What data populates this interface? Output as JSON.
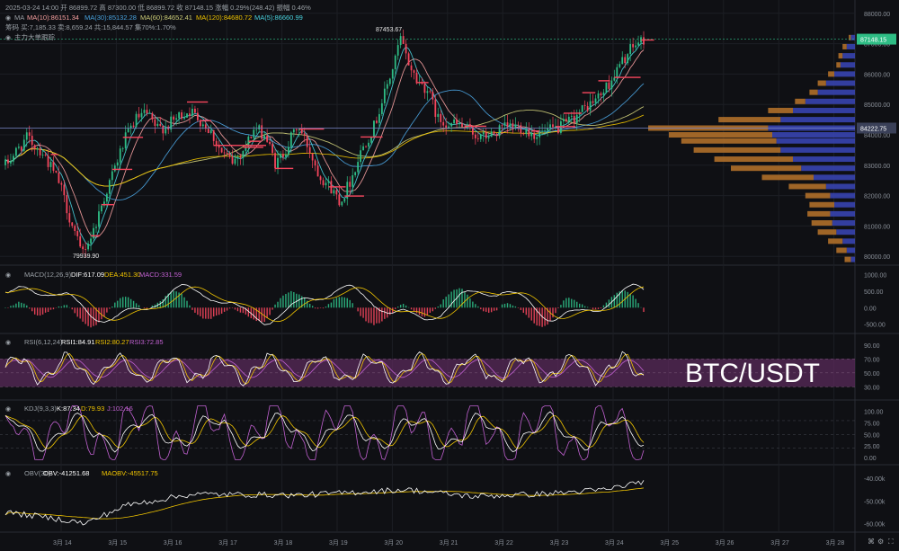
{
  "watermark": "BTC/USDT",
  "colors": {
    "background": "#0f1014",
    "grid": "#1c1e24",
    "up": "#2ebd85",
    "down": "#f6465d",
    "ma10": "#f7a1a1",
    "ma30": "#4aa3df",
    "ma60": "#cfcf7a",
    "ma120": "#f0c400",
    "ma5": "#ffffff",
    "macd_dif": "#ffffff",
    "macd_dea": "#f0c400",
    "rsi1": "#ffffff",
    "rsi2": "#f0c400",
    "rsi3": "#c060d0",
    "rsi_band": "#5a2a5a",
    "kdj_k": "#ffffff",
    "kdj_d": "#f0c400",
    "kdj_j": "#c060d0",
    "obv": "#ffffff",
    "maobv": "#f0c400",
    "vp_up": "#3a46b8",
    "vp_down": "#b8742a",
    "current_price_tag": "#2ebd85",
    "poc_tag": "#3a4058"
  },
  "header": {
    "ohlc_line": "2025-03-24 14:00  开 86899.72  高 87300.00  低 86899.72  收 87148.15  涨幅 0.29%(248.42)  振幅 0.46%",
    "ma_label": "MA",
    "ma_values": [
      {
        "label": "MA(10):86151.34",
        "color_key": "ma10"
      },
      {
        "label": "MA(30):85132.28",
        "color_key": "ma30"
      },
      {
        "label": "MA(60):84652.41",
        "color_key": "ma60"
      },
      {
        "label": "MA(120):84680.72",
        "color_key": "ma120"
      },
      {
        "label": "MA(5):86660.99",
        "color_key": "ma5"
      }
    ],
    "chip_line": "筹码 买:7,185.33  卖:8,659.24  共:15,844.57  集70%:1.70%",
    "chip_buy": "7,185.33",
    "chip_sell": "8,659.24",
    "chip_total": "15,844.57",
    "chip_70": "1.70%",
    "main_force_label": "主力大单跟踪"
  },
  "chart_data": [
    {
      "type": "candlestick",
      "name": "BTC/USDT price",
      "x_ticks": [
        "3月 14",
        "3月 15",
        "3月 16",
        "3月 17",
        "3月 18",
        "3月 19",
        "3月 20",
        "3月 21",
        "3月 22",
        "3月 23",
        "3月 24",
        "3月 25",
        "3月 26",
        "3月 27",
        "3月 28"
      ],
      "y_ticks": [
        80000,
        81000,
        82000,
        83000,
        84000,
        85000,
        86000,
        87000,
        88000
      ],
      "ylim": [
        79800,
        88200
      ],
      "annotations": {
        "high_label": "87453.67",
        "low_label": "79939.90"
      },
      "current_price": 87148.15,
      "current_price_label": "87148.15",
      "poc_price": 84222.75,
      "poc_label": "84222.75",
      "price_path": [
        [
          0,
          83000
        ],
        [
          4,
          83900
        ],
        [
          7,
          83400
        ],
        [
          10,
          82400
        ],
        [
          12,
          81200
        ],
        [
          14,
          80100
        ],
        [
          16,
          80700
        ],
        [
          18,
          81800
        ],
        [
          20,
          82800
        ],
        [
          22,
          83800
        ],
        [
          24,
          84500
        ],
        [
          26,
          84700
        ],
        [
          28,
          84200
        ],
        [
          30,
          84300
        ],
        [
          32,
          84600
        ],
        [
          34,
          84800
        ],
        [
          36,
          84500
        ],
        [
          38,
          84100
        ],
        [
          40,
          83400
        ],
        [
          42,
          83100
        ],
        [
          44,
          83500
        ],
        [
          46,
          84200
        ],
        [
          48,
          84000
        ],
        [
          50,
          83000
        ],
        [
          52,
          83600
        ],
        [
          54,
          84300
        ],
        [
          56,
          83600
        ],
        [
          58,
          82700
        ],
        [
          60,
          82300
        ],
        [
          62,
          81800
        ],
        [
          64,
          82600
        ],
        [
          66,
          83600
        ],
        [
          68,
          84200
        ],
        [
          70,
          85300
        ],
        [
          72,
          86400
        ],
        [
          73,
          87200
        ],
        [
          74,
          86600
        ],
        [
          76,
          85800
        ],
        [
          78,
          85500
        ],
        [
          80,
          84500
        ],
        [
          82,
          84400
        ],
        [
          84,
          84300
        ],
        [
          86,
          84100
        ],
        [
          88,
          83900
        ],
        [
          90,
          84000
        ],
        [
          92,
          84200
        ],
        [
          94,
          84300
        ],
        [
          96,
          84200
        ],
        [
          98,
          84000
        ],
        [
          100,
          84100
        ],
        [
          102,
          84200
        ],
        [
          104,
          84400
        ],
        [
          106,
          84700
        ],
        [
          108,
          85000
        ],
        [
          110,
          85300
        ],
        [
          112,
          85800
        ],
        [
          114,
          86400
        ],
        [
          116,
          86900
        ],
        [
          118,
          87148
        ]
      ],
      "volume_profile": [
        {
          "price": 79900,
          "up": 0.02,
          "down": 0.03
        },
        {
          "price": 80200,
          "up": 0.04,
          "down": 0.05
        },
        {
          "price": 80500,
          "up": 0.06,
          "down": 0.07
        },
        {
          "price": 80800,
          "up": 0.09,
          "down": 0.09
        },
        {
          "price": 81100,
          "up": 0.11,
          "down": 0.1
        },
        {
          "price": 81400,
          "up": 0.12,
          "down": 0.11
        },
        {
          "price": 81700,
          "up": 0.1,
          "down": 0.12
        },
        {
          "price": 82000,
          "up": 0.12,
          "down": 0.12
        },
        {
          "price": 82300,
          "up": 0.14,
          "down": 0.18
        },
        {
          "price": 82600,
          "up": 0.2,
          "down": 0.25
        },
        {
          "price": 82900,
          "up": 0.26,
          "down": 0.34
        },
        {
          "price": 83200,
          "up": 0.3,
          "down": 0.38
        },
        {
          "price": 83500,
          "up": 0.36,
          "down": 0.42
        },
        {
          "price": 83800,
          "up": 0.38,
          "down": 0.46
        },
        {
          "price": 84000,
          "up": 0.4,
          "down": 0.5
        },
        {
          "price": 84222,
          "up": 0.42,
          "down": 0.58
        },
        {
          "price": 84500,
          "up": 0.36,
          "down": 0.3
        },
        {
          "price": 84800,
          "up": 0.3,
          "down": 0.12
        },
        {
          "price": 85100,
          "up": 0.24,
          "down": 0.05
        },
        {
          "price": 85400,
          "up": 0.18,
          "down": 0.04
        },
        {
          "price": 85700,
          "up": 0.14,
          "down": 0.04
        },
        {
          "price": 86000,
          "up": 0.1,
          "down": 0.03
        },
        {
          "price": 86300,
          "up": 0.07,
          "down": 0.02
        },
        {
          "price": 86600,
          "up": 0.06,
          "down": 0.02
        },
        {
          "price": 86900,
          "up": 0.04,
          "down": 0.02
        },
        {
          "price": 87200,
          "up": 0.02,
          "down": 0.01
        }
      ]
    },
    {
      "type": "histogram+line",
      "name": "MACD(12,26,9)",
      "legend": [
        {
          "label": "MACD(12,26,9)",
          "color_key": "macd_dif"
        },
        {
          "label": "DIF:617.09",
          "color_key": "macd_dif"
        },
        {
          "label": "DEA:451.30",
          "color_key": "macd_dea"
        },
        {
          "label": "MACD:331.59",
          "color_key": "up"
        }
      ],
      "y_ticks": [
        -500,
        0,
        500,
        1000
      ],
      "ylim": [
        -700,
        1150
      ]
    },
    {
      "type": "line",
      "name": "RSI(6,12,24)",
      "legend": [
        {
          "label": "RSI(6,12,24)",
          "color_key": "rsi1"
        },
        {
          "label": "RSI1:84.91",
          "color_key": "rsi1"
        },
        {
          "label": "RSI2:80.27",
          "color_key": "rsi2"
        },
        {
          "label": "RSI3:72.85",
          "color_key": "rsi3"
        }
      ],
      "y_ticks": [
        30,
        50,
        70,
        90
      ],
      "band": [
        30,
        70
      ],
      "ylim": [
        15,
        100
      ]
    },
    {
      "type": "line",
      "name": "KDJ(9,3,3)",
      "legend": [
        {
          "label": "KDJ(9,3,3)",
          "color_key": "kdj_k"
        },
        {
          "label": "K:87.34",
          "color_key": "kdj_k"
        },
        {
          "label": "D:79.93",
          "color_key": "kdj_d"
        },
        {
          "label": "J:102.16",
          "color_key": "kdj_j"
        }
      ],
      "y_ticks": [
        0,
        25,
        50,
        75,
        100
      ],
      "ylim": [
        -10,
        115
      ]
    },
    {
      "type": "line",
      "name": "OBV(30)",
      "legend": [
        {
          "label": "OBV(30)",
          "color_key": "obv"
        },
        {
          "label": "OBV:-41251.68",
          "color_key": "obv"
        },
        {
          "label": "MAOBV:-45517.75",
          "color_key": "maobv"
        }
      ],
      "y_ticks": [
        -40000,
        -50000,
        -60000
      ],
      "y_tick_labels": [
        "-40.00k",
        "-50.00k",
        "-60.00k"
      ],
      "ylim": [
        -63000,
        -36000
      ]
    }
  ],
  "bottom_icons": [
    "camera-icon",
    "settings-icon",
    "fullscreen-icon"
  ]
}
